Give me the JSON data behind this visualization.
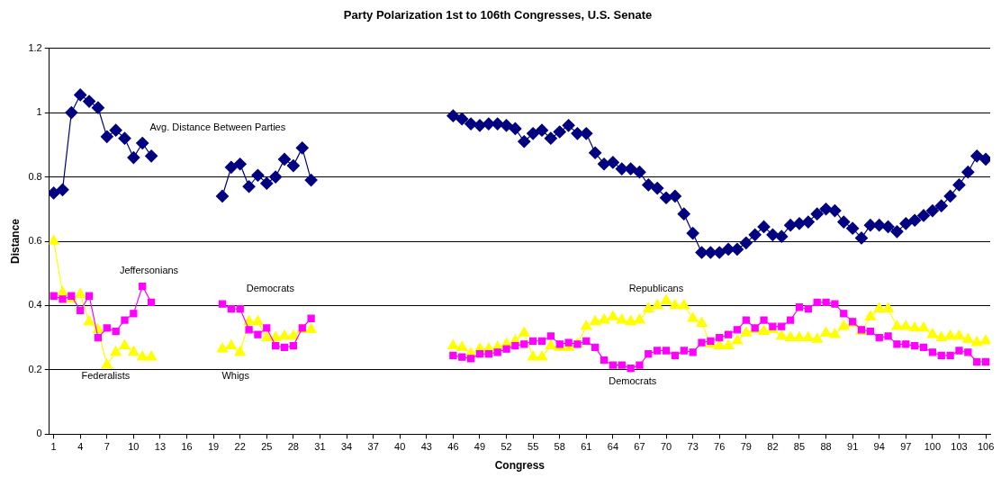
{
  "chart_data": {
    "type": "line",
    "title": "Party Polarization 1st to 106th Congresses, U.S. Senate",
    "xlabel": "Congress",
    "ylabel": "Distance",
    "x": [
      1,
      2,
      3,
      4,
      5,
      6,
      7,
      8,
      9,
      10,
      11,
      12,
      13,
      14,
      15,
      16,
      17,
      18,
      19,
      20,
      21,
      22,
      23,
      24,
      25,
      26,
      27,
      28,
      29,
      30,
      31,
      32,
      33,
      34,
      35,
      36,
      37,
      38,
      39,
      40,
      41,
      42,
      43,
      44,
      45,
      46,
      47,
      48,
      49,
      50,
      51,
      52,
      53,
      54,
      55,
      56,
      57,
      58,
      59,
      60,
      61,
      62,
      63,
      64,
      65,
      66,
      67,
      68,
      69,
      70,
      71,
      72,
      73,
      74,
      75,
      76,
      77,
      78,
      79,
      80,
      81,
      82,
      83,
      84,
      85,
      86,
      87,
      88,
      89,
      90,
      91,
      92,
      93,
      94,
      95,
      96,
      97,
      98,
      99,
      100,
      101,
      102,
      103,
      104,
      105,
      106
    ],
    "xlim": [
      0.5,
      106.5
    ],
    "xticks": [
      1,
      4,
      7,
      10,
      13,
      16,
      19,
      22,
      25,
      28,
      31,
      34,
      37,
      40,
      43,
      46,
      49,
      52,
      55,
      58,
      61,
      64,
      67,
      70,
      73,
      76,
      79,
      82,
      85,
      88,
      91,
      94,
      97,
      100,
      103,
      106
    ],
    "ylim": [
      0,
      1.2
    ],
    "yticks": [
      0,
      0.2,
      0.4,
      0.6,
      0.8,
      1,
      1.2
    ],
    "grid": "y",
    "legend": false,
    "line_style": "solid",
    "series": [
      {
        "color": "#000080",
        "marker": "diamond",
        "values": [
          0.75,
          0.76,
          1.0,
          1.055,
          1.035,
          1.015,
          0.925,
          0.945,
          0.92,
          0.86,
          0.905,
          0.865,
          null,
          null,
          null,
          null,
          null,
          null,
          null,
          0.74,
          0.83,
          0.84,
          0.77,
          0.805,
          0.78,
          0.8,
          0.855,
          0.835,
          0.89,
          0.79,
          null,
          null,
          null,
          null,
          null,
          null,
          null,
          null,
          null,
          null,
          null,
          null,
          null,
          null,
          null,
          0.99,
          0.98,
          0.965,
          0.96,
          0.965,
          0.965,
          0.96,
          0.95,
          0.91,
          0.935,
          0.945,
          0.92,
          0.94,
          0.96,
          0.935,
          0.935,
          0.875,
          0.84,
          0.845,
          0.825,
          0.825,
          0.815,
          0.775,
          0.765,
          0.735,
          0.74,
          0.685,
          0.625,
          0.565,
          0.565,
          0.565,
          0.575,
          0.575,
          0.595,
          0.62,
          0.645,
          0.62,
          0.615,
          0.65,
          0.655,
          0.66,
          0.685,
          0.7,
          0.695,
          0.66,
          0.64,
          0.61,
          0.65,
          0.65,
          0.645,
          0.63,
          0.655,
          0.665,
          0.68,
          0.695,
          0.71,
          0.74,
          0.775,
          0.815,
          0.865,
          0.855
        ]
      },
      {
        "color": "#ff00ff",
        "marker": "square",
        "values": [
          0.43,
          0.42,
          0.43,
          0.385,
          0.43,
          0.3,
          0.33,
          0.32,
          0.355,
          0.375,
          0.46,
          0.41,
          null,
          null,
          null,
          null,
          null,
          null,
          null,
          0.405,
          0.39,
          0.39,
          0.325,
          0.31,
          0.33,
          0.275,
          0.27,
          0.275,
          0.33,
          0.36,
          null,
          null,
          null,
          null,
          null,
          null,
          null,
          null,
          null,
          null,
          null,
          null,
          null,
          null,
          null,
          0.245,
          0.24,
          0.235,
          0.25,
          0.25,
          0.255,
          0.265,
          0.275,
          0.28,
          0.29,
          0.29,
          0.305,
          0.28,
          0.285,
          0.28,
          0.29,
          0.27,
          0.23,
          0.215,
          0.215,
          0.205,
          0.215,
          0.25,
          0.26,
          0.26,
          0.245,
          0.26,
          0.255,
          0.285,
          0.29,
          0.3,
          0.31,
          0.325,
          0.355,
          0.33,
          0.355,
          0.335,
          0.335,
          0.355,
          0.395,
          0.39,
          0.41,
          0.41,
          0.405,
          0.375,
          0.35,
          0.325,
          0.32,
          0.3,
          0.305,
          0.28,
          0.28,
          0.275,
          0.27,
          0.255,
          0.245,
          0.245,
          0.26,
          0.255,
          0.225,
          0.225
        ]
      },
      {
        "color": "#ffff00",
        "marker": "triangle",
        "values": [
          0.6,
          0.44,
          0.42,
          0.435,
          0.35,
          0.325,
          0.215,
          0.255,
          0.275,
          0.255,
          0.24,
          0.24,
          null,
          null,
          null,
          null,
          null,
          null,
          null,
          0.265,
          0.275,
          0.255,
          0.35,
          0.35,
          0.3,
          0.3,
          0.305,
          0.305,
          0.325,
          0.325,
          null,
          null,
          null,
          null,
          null,
          null,
          null,
          null,
          null,
          null,
          null,
          null,
          null,
          null,
          null,
          0.275,
          0.27,
          0.25,
          0.265,
          0.265,
          0.27,
          0.28,
          0.29,
          0.315,
          0.24,
          0.24,
          0.275,
          0.27,
          0.27,
          0.28,
          0.335,
          0.35,
          0.355,
          0.365,
          0.355,
          0.35,
          0.355,
          0.39,
          0.4,
          0.415,
          0.4,
          0.4,
          0.36,
          0.345,
          0.28,
          0.275,
          0.275,
          0.29,
          0.315,
          0.325,
          0.32,
          0.325,
          0.305,
          0.3,
          0.3,
          0.3,
          0.295,
          0.315,
          0.31,
          0.335,
          0.345,
          0.32,
          0.365,
          0.39,
          0.39,
          0.335,
          0.335,
          0.33,
          0.33,
          0.31,
          0.3,
          0.305,
          0.305,
          0.295,
          0.285,
          0.29
        ]
      }
    ],
    "annotations": [
      "Avg. Distance Between Parties",
      "Jeffersonians",
      "Federalists",
      "Democrats",
      "Whigs",
      "Republicans",
      "Democrats"
    ]
  }
}
